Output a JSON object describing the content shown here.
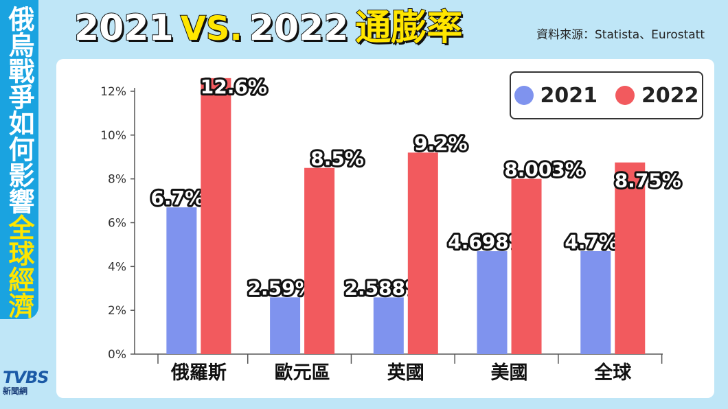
{
  "side_banner": {
    "part1": "俄烏戰爭如何影響",
    "part2": "全球經濟"
  },
  "title": {
    "year_a": "2021",
    "vs": "VS.",
    "year_b": "2022",
    "main": "通膨率"
  },
  "source": "資料來源：Statista、Eurostatt",
  "logo": {
    "mark": "TVBS",
    "sub": "新聞網"
  },
  "colors": {
    "series_2021": "#7f93ee",
    "series_2022": "#f25a5e"
  },
  "chart_data": {
    "type": "bar",
    "categories": [
      "俄羅斯",
      "歐元區",
      "英國",
      "美國",
      "全球"
    ],
    "series": [
      {
        "name": "2021",
        "values": [
          6.7,
          2.59,
          2.588,
          4.698,
          4.7
        ],
        "labels": [
          "6.7%",
          "2.59%",
          "2.588%",
          "4.698%",
          "4.7%"
        ]
      },
      {
        "name": "2022",
        "values": [
          12.6,
          8.5,
          9.2,
          8.003,
          8.75
        ],
        "labels": [
          "12.6%",
          "8.5%",
          "9.2%",
          "8.003%",
          "8.75%"
        ]
      }
    ],
    "yticks": [
      "0%",
      "2%",
      "4%",
      "6%",
      "8%",
      "10%",
      "12%"
    ],
    "ylim": [
      0,
      12
    ],
    "legend_position": "top-right",
    "grid": false
  }
}
